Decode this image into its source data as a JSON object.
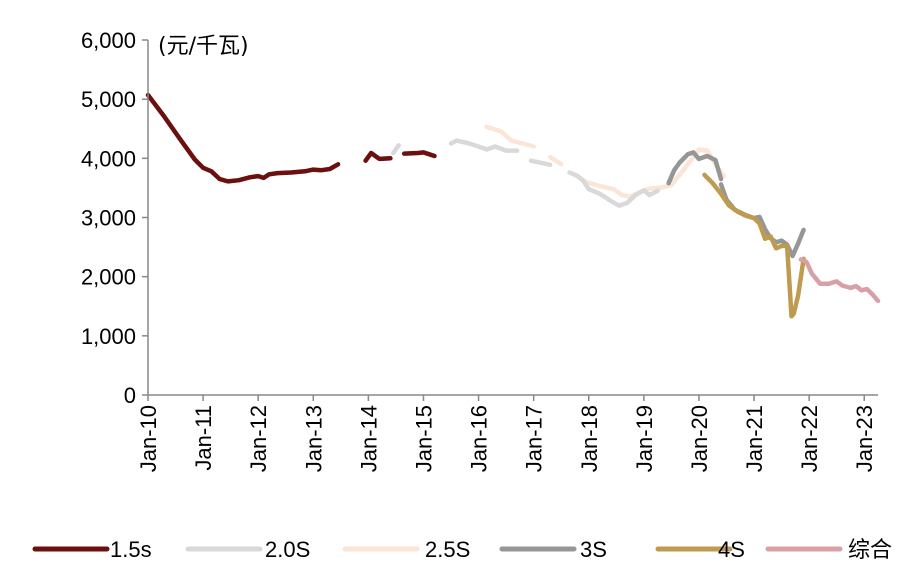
{
  "chart_data": {
    "type": "line",
    "unit_label": "(元/千瓦)",
    "ylim": [
      0,
      6000
    ],
    "xlim": [
      2010.0,
      2023.25
    ],
    "y_ticks": [
      0,
      1000,
      2000,
      3000,
      4000,
      5000,
      6000
    ],
    "y_tick_labels": [
      "0",
      "1,000",
      "2,000",
      "3,000",
      "4,000",
      "5,000",
      "6,000"
    ],
    "x_ticks": [
      2010,
      2011,
      2012,
      2013,
      2014,
      2015,
      2016,
      2017,
      2018,
      2019,
      2020,
      2021,
      2022,
      2023
    ],
    "x_tick_labels": [
      "Jan-10",
      "Jan-11",
      "Jan-12",
      "Jan-13",
      "Jan-14",
      "Jan-15",
      "Jan-16",
      "Jan-17",
      "Jan-18",
      "Jan-19",
      "Jan-20",
      "Jan-21",
      "Jan-22",
      "Jan-23"
    ],
    "grid": false,
    "legend_position": "bottom",
    "series": [
      {
        "name": "1.5s",
        "color": "#6b0f0f",
        "segments": [
          [
            [
              2010.0,
              5070
            ],
            [
              2010.3,
              4700
            ],
            [
              2010.6,
              4300
            ],
            [
              2010.85,
              3980
            ],
            [
              2011.0,
              3840
            ],
            [
              2011.15,
              3780
            ],
            [
              2011.3,
              3650
            ],
            [
              2011.45,
              3610
            ],
            [
              2011.65,
              3630
            ],
            [
              2011.85,
              3680
            ],
            [
              2012.0,
              3700
            ],
            [
              2012.1,
              3670
            ],
            [
              2012.2,
              3730
            ],
            [
              2012.35,
              3750
            ],
            [
              2012.6,
              3760
            ],
            [
              2012.85,
              3780
            ],
            [
              2013.0,
              3810
            ],
            [
              2013.15,
              3800
            ],
            [
              2013.3,
              3820
            ],
            [
              2013.45,
              3900
            ]
          ],
          [
            [
              2013.95,
              3960
            ],
            [
              2014.05,
              4090
            ],
            [
              2014.2,
              3990
            ],
            [
              2014.4,
              4000
            ]
          ],
          [
            [
              2014.65,
              4080
            ],
            [
              2014.9,
              4090
            ],
            [
              2015.0,
              4100
            ],
            [
              2015.1,
              4070
            ],
            [
              2015.2,
              4040
            ]
          ]
        ]
      },
      {
        "name": "2.0S",
        "color": "#d9d9d9",
        "segments": [
          [
            [
              2014.45,
              4090
            ],
            [
              2014.55,
              4220
            ]
          ],
          [
            [
              2015.5,
              4250
            ],
            [
              2015.6,
              4300
            ],
            [
              2015.8,
              4260
            ],
            [
              2016.0,
              4200
            ],
            [
              2016.15,
              4150
            ],
            [
              2016.3,
              4200
            ],
            [
              2016.5,
              4130
            ],
            [
              2016.7,
              4130
            ]
          ],
          [
            [
              2016.95,
              3960
            ],
            [
              2017.3,
              3890
            ]
          ],
          [
            [
              2017.65,
              3760
            ],
            [
              2017.8,
              3700
            ],
            [
              2017.9,
              3620
            ],
            [
              2018.0,
              3480
            ],
            [
              2018.2,
              3400
            ],
            [
              2018.4,
              3280
            ],
            [
              2018.55,
              3200
            ],
            [
              2018.7,
              3250
            ],
            [
              2018.85,
              3380
            ],
            [
              2019.0,
              3460
            ],
            [
              2019.1,
              3380
            ],
            [
              2019.25,
              3450
            ]
          ]
        ]
      },
      {
        "name": "2.5S",
        "color": "#fbe5d6",
        "segments": [
          [
            [
              2016.15,
              4530
            ],
            [
              2016.4,
              4460
            ],
            [
              2016.6,
              4300
            ],
            [
              2016.8,
              4250
            ],
            [
              2017.0,
              4200
            ]
          ],
          [
            [
              2017.3,
              4020
            ],
            [
              2017.5,
              3900
            ]
          ],
          [
            [
              2017.75,
              3720
            ],
            [
              2017.95,
              3600
            ],
            [
              2018.2,
              3530
            ],
            [
              2018.45,
              3480
            ],
            [
              2018.6,
              3380
            ],
            [
              2018.75,
              3350
            ],
            [
              2018.9,
              3420
            ],
            [
              2019.1,
              3490
            ],
            [
              2019.3,
              3500
            ],
            [
              2019.5,
              3550
            ],
            [
              2019.7,
              3780
            ],
            [
              2019.9,
              4020
            ],
            [
              2020.0,
              4150
            ],
            [
              2020.15,
              4130
            ],
            [
              2020.3,
              3900
            ],
            [
              2020.45,
              3700
            ]
          ]
        ]
      },
      {
        "name": "3S",
        "color": "#969696",
        "segments": [
          [
            [
              2019.45,
              3580
            ],
            [
              2019.55,
              3800
            ],
            [
              2019.65,
              3930
            ],
            [
              2019.8,
              4070
            ],
            [
              2019.9,
              4100
            ],
            [
              2020.0,
              3990
            ],
            [
              2020.15,
              4040
            ],
            [
              2020.3,
              3970
            ],
            [
              2020.4,
              3650
            ]
          ],
          [
            [
              2020.4,
              3560
            ],
            [
              2020.5,
              3300
            ],
            [
              2020.65,
              3130
            ],
            [
              2020.85,
              3040
            ],
            [
              2021.0,
              2990
            ],
            [
              2021.1,
              3010
            ],
            [
              2021.2,
              2800
            ],
            [
              2021.3,
              2650
            ],
            [
              2021.4,
              2580
            ],
            [
              2021.5,
              2610
            ],
            [
              2021.6,
              2540
            ],
            [
              2021.7,
              2350
            ],
            [
              2021.8,
              2560
            ],
            [
              2021.9,
              2790
            ]
          ]
        ]
      },
      {
        "name": "4S",
        "color": "#bf9b52",
        "segments": [
          [
            [
              2020.1,
              3720
            ],
            [
              2020.25,
              3580
            ],
            [
              2020.4,
              3400
            ],
            [
              2020.55,
              3200
            ],
            [
              2020.7,
              3100
            ],
            [
              2020.85,
              3030
            ],
            [
              2021.0,
              2990
            ],
            [
              2021.1,
              2900
            ],
            [
              2021.2,
              2640
            ],
            [
              2021.3,
              2680
            ],
            [
              2021.4,
              2480
            ],
            [
              2021.5,
              2520
            ],
            [
              2021.6,
              2520
            ],
            [
              2021.68,
              1330
            ],
            [
              2021.72,
              1370
            ],
            [
              2021.8,
              1680
            ],
            [
              2021.9,
              2300
            ]
          ]
        ]
      },
      {
        "name": "综合",
        "color": "#d8a0a6",
        "segments": [
          [
            [
              2021.85,
              2290
            ],
            [
              2021.95,
              2250
            ],
            [
              2022.05,
              2050
            ],
            [
              2022.2,
              1880
            ],
            [
              2022.35,
              1880
            ],
            [
              2022.5,
              1920
            ],
            [
              2022.6,
              1850
            ],
            [
              2022.75,
              1810
            ],
            [
              2022.85,
              1840
            ],
            [
              2022.95,
              1770
            ],
            [
              2023.05,
              1790
            ],
            [
              2023.15,
              1700
            ],
            [
              2023.25,
              1590
            ]
          ]
        ]
      }
    ]
  }
}
